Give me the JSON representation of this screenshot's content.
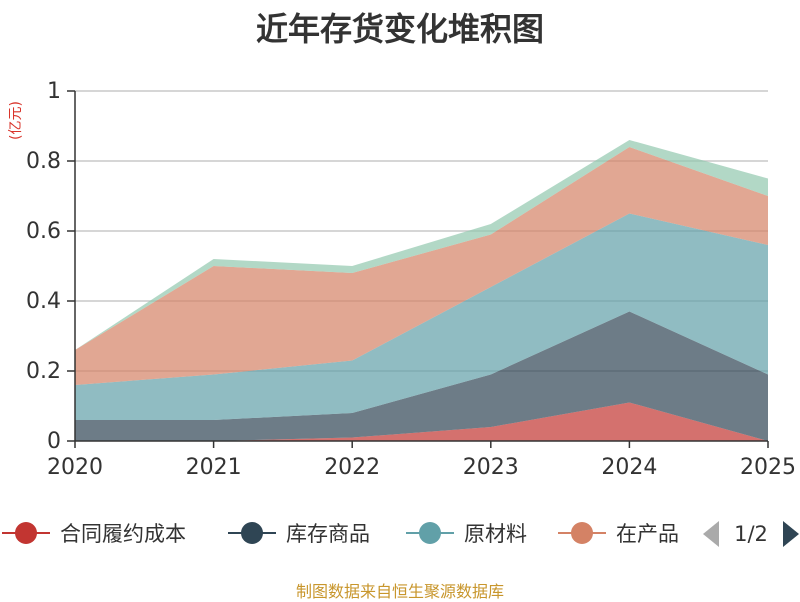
{
  "chart_data": {
    "type": "area",
    "stacked": true,
    "title": "近年存货变化堆积图",
    "unit_label": "(亿元)",
    "x": [
      "2020",
      "2021",
      "2022",
      "2023",
      "2024",
      "2025"
    ],
    "ylim": [
      0,
      1
    ],
    "y_ticks": [
      "0",
      "0.2",
      "0.4",
      "0.6",
      "0.8",
      "1"
    ],
    "grid": true,
    "legend_position": "bottom",
    "series": [
      {
        "name": "合同履约成本",
        "color": "#c23531",
        "values": [
          0.0,
          0.0,
          0.01,
          0.04,
          0.11,
          0.0
        ]
      },
      {
        "name": "库存商品",
        "color": "#2f4554",
        "values": [
          0.06,
          0.06,
          0.07,
          0.15,
          0.26,
          0.19
        ]
      },
      {
        "name": "原材料",
        "color": "#61a0a8",
        "values": [
          0.1,
          0.13,
          0.15,
          0.25,
          0.28,
          0.37
        ]
      },
      {
        "name": "在产品",
        "color": "#d48265",
        "values": [
          0.1,
          0.31,
          0.25,
          0.15,
          0.19,
          0.14
        ]
      },
      {
        "name": "",
        "color": "#91c7ae",
        "values": [
          0.0,
          0.02,
          0.02,
          0.03,
          0.02,
          0.05
        ]
      }
    ]
  },
  "legend": {
    "items": [
      "合同履约成本",
      "库存商品",
      "原材料",
      "在产品"
    ],
    "page": "1/2"
  },
  "source_note": "制图数据来自恒生聚源数据库"
}
